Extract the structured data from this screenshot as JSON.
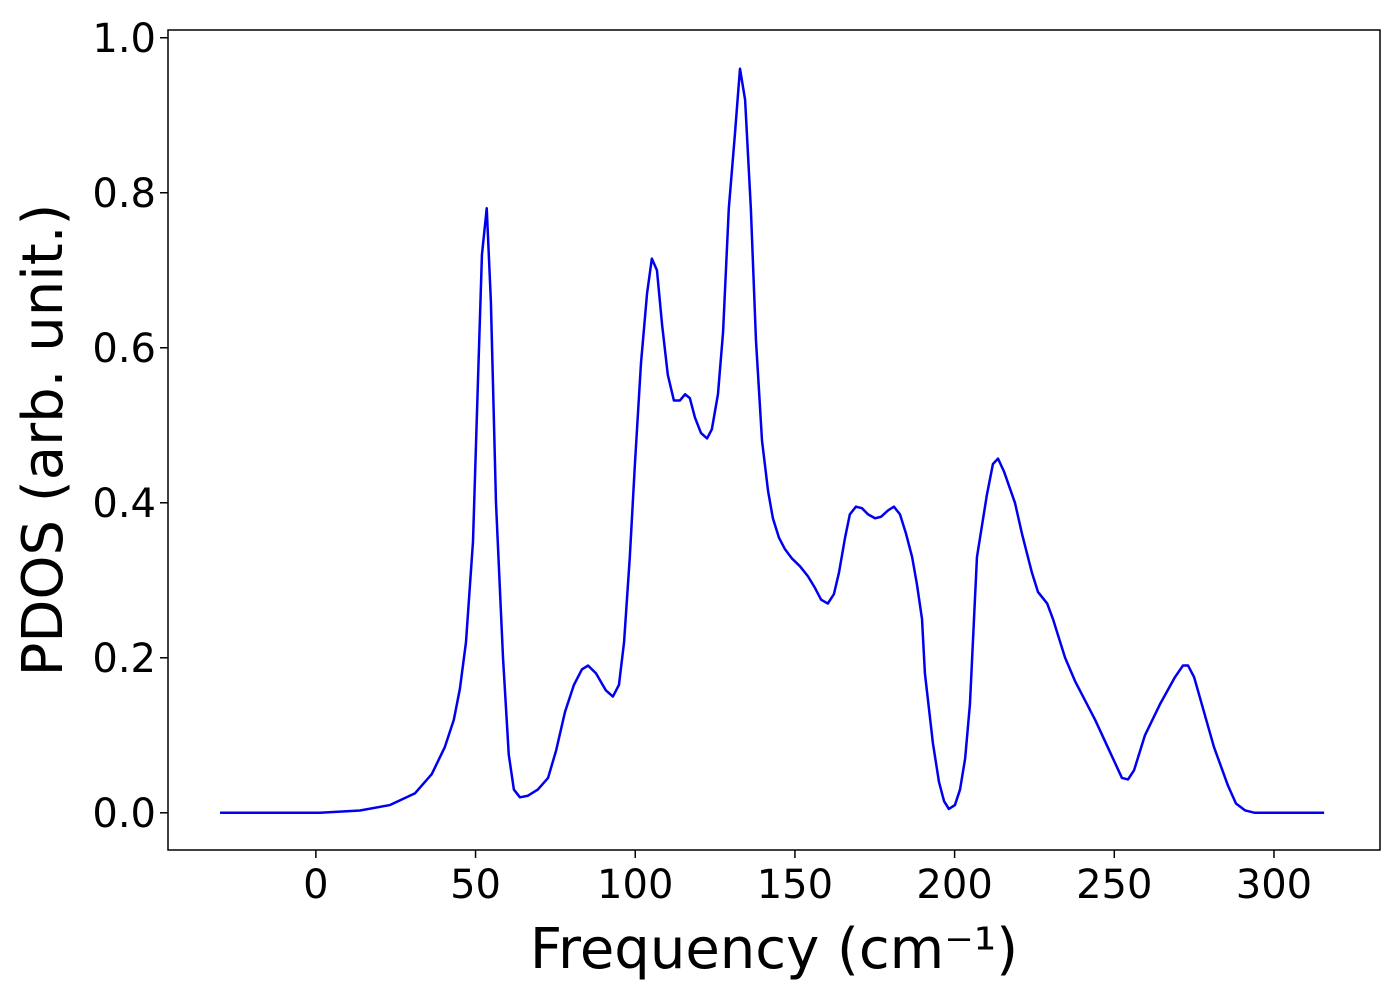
{
  "chart_data": {
    "type": "line",
    "xlabel": "Frequency (cm⁻¹)",
    "ylabel": "PDOS (arb. unit.)",
    "x": [
      -30,
      1.3,
      13.8,
      23.2,
      31,
      36.3,
      40.4,
      43.2,
      45.1,
      47,
      49.2,
      50.7,
      52,
      53.5,
      54.8,
      56.4,
      58.6,
      60.4,
      62,
      63.9,
      66.4,
      69.5,
      72.7,
      75.2,
      78,
      80.8,
      83.3,
      85.2,
      87.7,
      90.8,
      93,
      94.9,
      96.5,
      98.3,
      99.9,
      101.8,
      103.7,
      105.2,
      106.8,
      108.4,
      110.2,
      112.1,
      114,
      115.6,
      117.1,
      118.7,
      120.6,
      122.5,
      124,
      125.9,
      127.5,
      129.3,
      131.2,
      132.8,
      134.4,
      136.2,
      137.8,
      139.7,
      141.6,
      143.1,
      145,
      146.9,
      149.1,
      151.6,
      154.1,
      156.3,
      158.2,
      160.3,
      162.2,
      163.8,
      165.7,
      167.2,
      169.1,
      171,
      172.9,
      175.1,
      177,
      179.1,
      181,
      182.9,
      184.8,
      186.7,
      188.2,
      189.8,
      190.7,
      193.2,
      195.1,
      196.7,
      198.2,
      200.1,
      201.7,
      203.3,
      204.8,
      207,
      210.1,
      212,
      213.6,
      215.5,
      218.9,
      221.1,
      224.2,
      226.1,
      229,
      230.8,
      234.6,
      237.7,
      244,
      249.6,
      252.4,
      254.3,
      256.2,
      259.6,
      264.3,
      269,
      271.5,
      273.1,
      275,
      278.1,
      281.2,
      285.6,
      288.1,
      291,
      294,
      315.7
    ],
    "series": [
      {
        "name": "PDOS",
        "color": "#0000ee",
        "values": [
          0,
          0,
          0.003,
          0.01,
          0.025,
          0.05,
          0.085,
          0.12,
          0.16,
          0.22,
          0.35,
          0.55,
          0.72,
          0.78,
          0.66,
          0.4,
          0.2,
          0.075,
          0.03,
          0.02,
          0.022,
          0.03,
          0.045,
          0.08,
          0.13,
          0.165,
          0.185,
          0.19,
          0.18,
          0.158,
          0.15,
          0.165,
          0.22,
          0.33,
          0.45,
          0.58,
          0.67,
          0.715,
          0.7,
          0.63,
          0.565,
          0.532,
          0.532,
          0.54,
          0.535,
          0.51,
          0.49,
          0.483,
          0.495,
          0.54,
          0.62,
          0.78,
          0.875,
          0.96,
          0.92,
          0.78,
          0.61,
          0.48,
          0.415,
          0.38,
          0.355,
          0.34,
          0.328,
          0.318,
          0.305,
          0.29,
          0.275,
          0.27,
          0.282,
          0.31,
          0.355,
          0.385,
          0.395,
          0.393,
          0.385,
          0.38,
          0.382,
          0.39,
          0.395,
          0.385,
          0.36,
          0.33,
          0.295,
          0.25,
          0.18,
          0.09,
          0.04,
          0.015,
          0.005,
          0.01,
          0.03,
          0.07,
          0.14,
          0.33,
          0.41,
          0.45,
          0.457,
          0.44,
          0.4,
          0.36,
          0.31,
          0.285,
          0.27,
          0.25,
          0.2,
          0.17,
          0.12,
          0.07,
          0.045,
          0.043,
          0.055,
          0.1,
          0.14,
          0.175,
          0.19,
          0.19,
          0.175,
          0.13,
          0.085,
          0.035,
          0.012,
          0.003,
          0,
          0
        ]
      }
    ],
    "xlim": [
      -46.3,
      333.2
    ],
    "ylim": [
      -0.048,
      1.01
    ],
    "xticks": [
      0,
      50,
      100,
      150,
      200,
      250,
      300
    ],
    "yticks": [
      {
        "value": 0,
        "label": "0.0"
      },
      0.2,
      0.4,
      0.6,
      0.8,
      {
        "value": 1,
        "label": "1.0"
      }
    ]
  }
}
